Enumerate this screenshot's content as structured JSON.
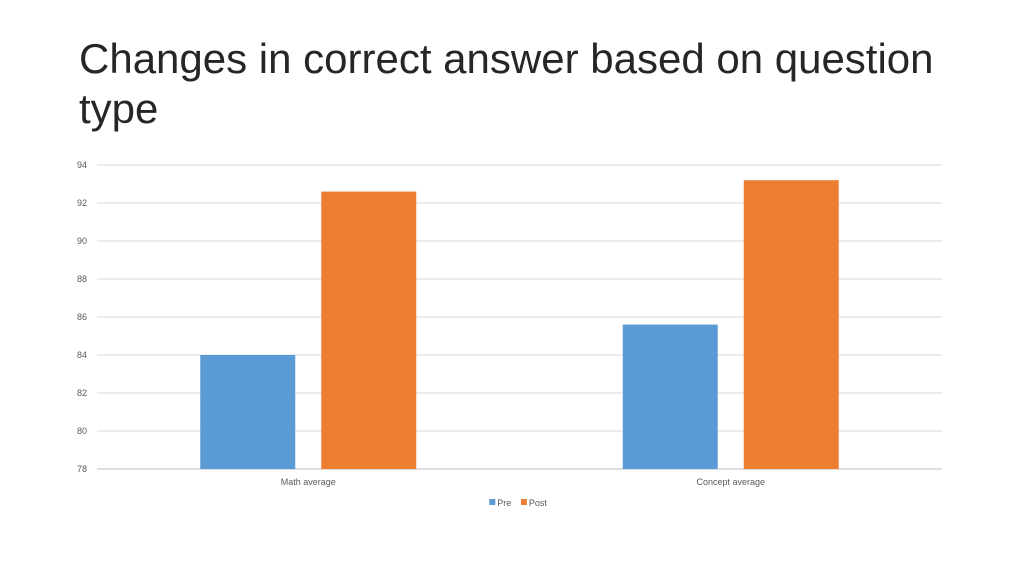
{
  "slide": {
    "title": "Changes in correct answer based on question type"
  },
  "chart_data": {
    "type": "bar",
    "title": "",
    "xlabel": "",
    "ylabel": "",
    "categories": [
      "Math average",
      "Concept average"
    ],
    "series": [
      {
        "name": "Pre",
        "values": [
          84.0,
          85.6
        ],
        "color": "#5B9BD5"
      },
      {
        "name": "Post",
        "values": [
          92.6,
          93.2
        ],
        "color": "#ED7D31"
      }
    ],
    "ylim": [
      78,
      94
    ],
    "yticks": [
      78,
      80,
      82,
      84,
      86,
      88,
      90,
      92,
      94
    ],
    "grid": true,
    "legend_position": "bottom"
  }
}
